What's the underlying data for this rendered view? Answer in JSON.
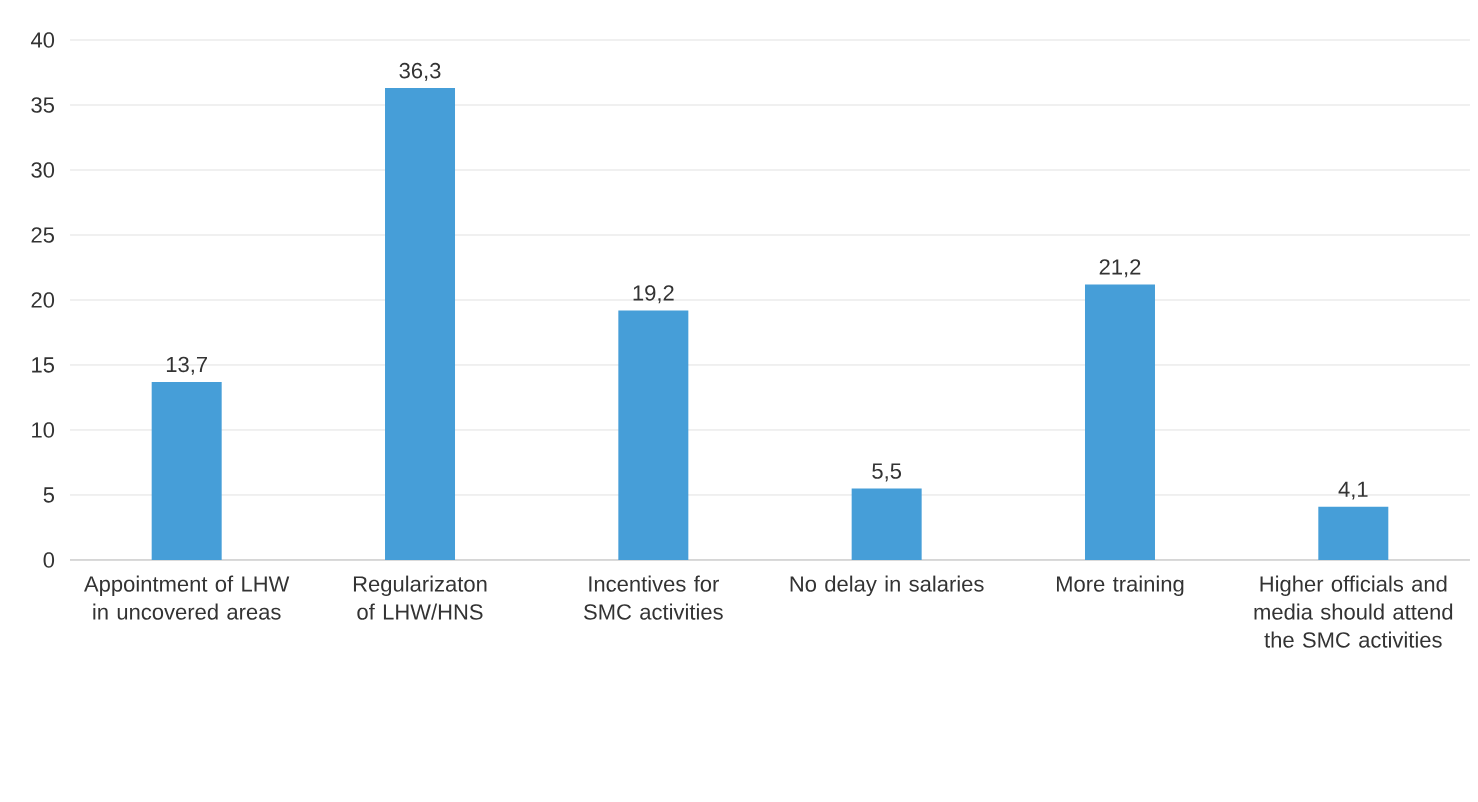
{
  "chart_data": {
    "type": "bar",
    "categories": [
      "Appointment of LHW in uncovered areas",
      "Regularizaton of LHW/HNS",
      "Incentives for SMC activities",
      "No delay in salaries",
      "More training",
      "Higher officials and media should attend the SMC activities"
    ],
    "values": [
      13.7,
      36.3,
      19.2,
      5.5,
      21.2,
      4.1
    ],
    "value_labels": [
      "13,7",
      "36,3",
      "19,2",
      "5,5",
      "21,2",
      "4,1"
    ],
    "color": "#469ed8",
    "ylim": [
      0,
      40
    ],
    "yticks": [
      0,
      5,
      10,
      15,
      20,
      25,
      30,
      35,
      40
    ],
    "grid": "y"
  }
}
